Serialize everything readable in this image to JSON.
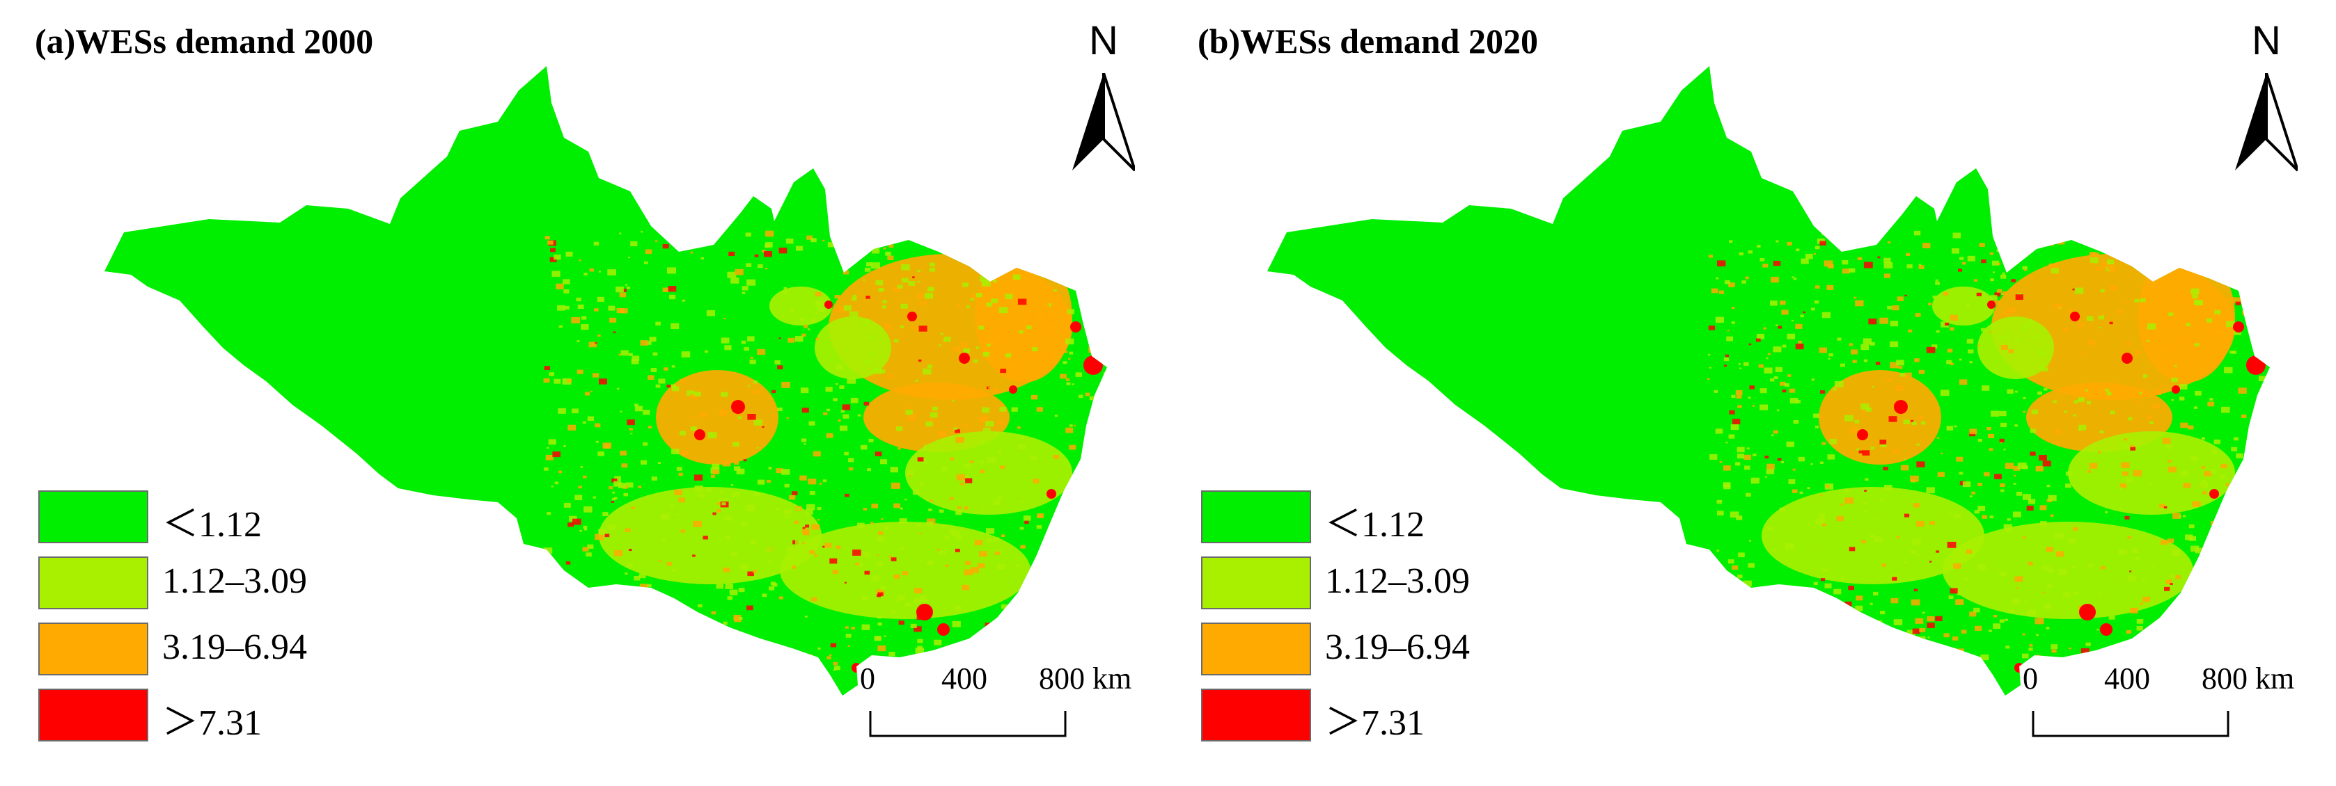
{
  "panels": [
    {
      "id": "a",
      "title": "(a)WESs demand 2000",
      "north_label": "N",
      "scale": {
        "labels": [
          "0",
          "400",
          "800 km"
        ]
      }
    },
    {
      "id": "b",
      "title": "(b)WESs demand 2020",
      "north_label": "N",
      "scale": {
        "labels": [
          "0",
          "400",
          "800 km"
        ]
      }
    }
  ],
  "legend": [
    {
      "label": "＜1.12",
      "color": "#00ee00"
    },
    {
      "label": "1.12–3.09",
      "color": "#a8f000"
    },
    {
      "label": "3.19–6.94",
      "color": "#ffaa00"
    },
    {
      "label": "＞7.31",
      "color": "#ff0000"
    }
  ]
}
